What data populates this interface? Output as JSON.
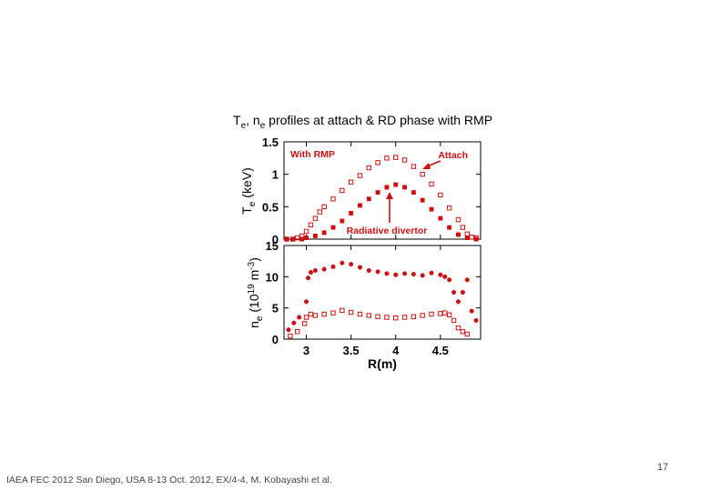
{
  "slide": {
    "title_parts": {
      "t": "T",
      "t_sub": "e",
      "sep": ", ",
      "n": "n",
      "n_sub": "e",
      "rest": " profiles at attach & RD phase with RMP"
    },
    "footer": "IAEA FEC 2012 San Diego, USA 8-13 Oct. 2012, EX/4-4, M. Kobayashi et al.",
    "page_number": "17"
  },
  "colors": {
    "marker": "#cc1111",
    "axis": "#000000"
  },
  "chart_data": [
    {
      "type": "scatter",
      "title": "",
      "ylabel": "Te (keV)",
      "ylabel_parts": {
        "main": "T",
        "sub": "e",
        "unit": " (keV)"
      },
      "xlabel": "",
      "xlim": [
        2.75,
        4.95
      ],
      "ylim": [
        0,
        1.5
      ],
      "yticks": [
        "0",
        "0.5",
        "1",
        "1.5"
      ],
      "annotations": [
        "With RMP",
        "Attach",
        "Radiative divertor"
      ],
      "series": [
        {
          "name": "Attach",
          "marker": "open-square",
          "points": [
            [
              2.78,
              0.0
            ],
            [
              2.85,
              0.0
            ],
            [
              2.9,
              0.02
            ],
            [
              2.95,
              0.05
            ],
            [
              3.0,
              0.12
            ],
            [
              3.05,
              0.22
            ],
            [
              3.1,
              0.32
            ],
            [
              3.15,
              0.42
            ],
            [
              3.2,
              0.5
            ],
            [
              3.3,
              0.62
            ],
            [
              3.4,
              0.75
            ],
            [
              3.5,
              0.88
            ],
            [
              3.6,
              0.98
            ],
            [
              3.7,
              1.1
            ],
            [
              3.8,
              1.18
            ],
            [
              3.9,
              1.25
            ],
            [
              4.0,
              1.26
            ],
            [
              4.1,
              1.22
            ],
            [
              4.2,
              1.12
            ],
            [
              4.3,
              1.0
            ],
            [
              4.4,
              0.85
            ],
            [
              4.5,
              0.68
            ],
            [
              4.6,
              0.48
            ],
            [
              4.7,
              0.3
            ],
            [
              4.75,
              0.18
            ],
            [
              4.8,
              0.08
            ],
            [
              4.85,
              0.03
            ],
            [
              4.9,
              0.02
            ]
          ]
        },
        {
          "name": "Radiative divertor",
          "marker": "filled-square",
          "points": [
            [
              2.78,
              0.0
            ],
            [
              2.85,
              0.0
            ],
            [
              2.95,
              0.0
            ],
            [
              3.0,
              0.02
            ],
            [
              3.1,
              0.05
            ],
            [
              3.2,
              0.1
            ],
            [
              3.3,
              0.18
            ],
            [
              3.4,
              0.28
            ],
            [
              3.5,
              0.4
            ],
            [
              3.6,
              0.52
            ],
            [
              3.7,
              0.62
            ],
            [
              3.8,
              0.72
            ],
            [
              3.9,
              0.8
            ],
            [
              4.0,
              0.84
            ],
            [
              4.1,
              0.8
            ],
            [
              4.2,
              0.72
            ],
            [
              4.3,
              0.6
            ],
            [
              4.4,
              0.46
            ],
            [
              4.5,
              0.32
            ],
            [
              4.6,
              0.18
            ],
            [
              4.7,
              0.07
            ],
            [
              4.8,
              0.02
            ],
            [
              4.9,
              0.0
            ]
          ]
        }
      ]
    },
    {
      "type": "scatter",
      "title": "",
      "ylabel": "ne (1019 m-3)",
      "ylabel_parts": {
        "main": "n",
        "sub": "e",
        "open": " (10",
        "exp": "19",
        "mid": " m",
        "exp2": "-3",
        "close": ")"
      },
      "xlabel": "R(m)",
      "xlim": [
        2.75,
        4.95
      ],
      "ylim": [
        0,
        15
      ],
      "xticks": [
        "3",
        "3.5",
        "4",
        "4.5"
      ],
      "xtick_values": [
        3,
        3.5,
        4,
        4.5
      ],
      "yticks": [
        "0",
        "5",
        "10",
        "15"
      ],
      "series": [
        {
          "name": "Attach",
          "marker": "open-square",
          "points": [
            [
              2.82,
              0.5
            ],
            [
              2.9,
              1.2
            ],
            [
              2.98,
              2.5
            ],
            [
              3.0,
              3.5
            ],
            [
              3.05,
              4.0
            ],
            [
              3.1,
              3.8
            ],
            [
              3.2,
              4.0
            ],
            [
              3.3,
              4.2
            ],
            [
              3.4,
              4.6
            ],
            [
              3.5,
              4.3
            ],
            [
              3.6,
              4.0
            ],
            [
              3.7,
              3.8
            ],
            [
              3.8,
              3.6
            ],
            [
              3.9,
              3.5
            ],
            [
              4.0,
              3.4
            ],
            [
              4.1,
              3.5
            ],
            [
              4.2,
              3.6
            ],
            [
              4.3,
              3.8
            ],
            [
              4.4,
              4.0
            ],
            [
              4.5,
              4.1
            ],
            [
              4.55,
              4.2
            ],
            [
              4.6,
              3.9
            ],
            [
              4.65,
              3.0
            ],
            [
              4.7,
              1.8
            ],
            [
              4.75,
              1.2
            ],
            [
              4.8,
              0.8
            ]
          ]
        },
        {
          "name": "Radiative divertor",
          "marker": "filled-dot",
          "points": [
            [
              2.8,
              1.5
            ],
            [
              2.86,
              2.6
            ],
            [
              2.92,
              3.5
            ],
            [
              3.0,
              6.0
            ],
            [
              3.02,
              9.8
            ],
            [
              3.05,
              10.7
            ],
            [
              3.1,
              11.0
            ],
            [
              3.2,
              11.2
            ],
            [
              3.3,
              11.6
            ],
            [
              3.4,
              12.2
            ],
            [
              3.5,
              12.0
            ],
            [
              3.6,
              11.5
            ],
            [
              3.7,
              11.0
            ],
            [
              3.8,
              10.8
            ],
            [
              3.9,
              10.5
            ],
            [
              4.0,
              10.3
            ],
            [
              4.1,
              10.5
            ],
            [
              4.2,
              10.4
            ],
            [
              4.3,
              10.2
            ],
            [
              4.4,
              10.6
            ],
            [
              4.5,
              10.3
            ],
            [
              4.55,
              10.0
            ],
            [
              4.6,
              9.5
            ],
            [
              4.65,
              7.5
            ],
            [
              4.7,
              6.0
            ],
            [
              4.75,
              7.5
            ],
            [
              4.8,
              9.5
            ],
            [
              4.85,
              4.5
            ],
            [
              4.9,
              3.0
            ]
          ]
        }
      ]
    }
  ]
}
